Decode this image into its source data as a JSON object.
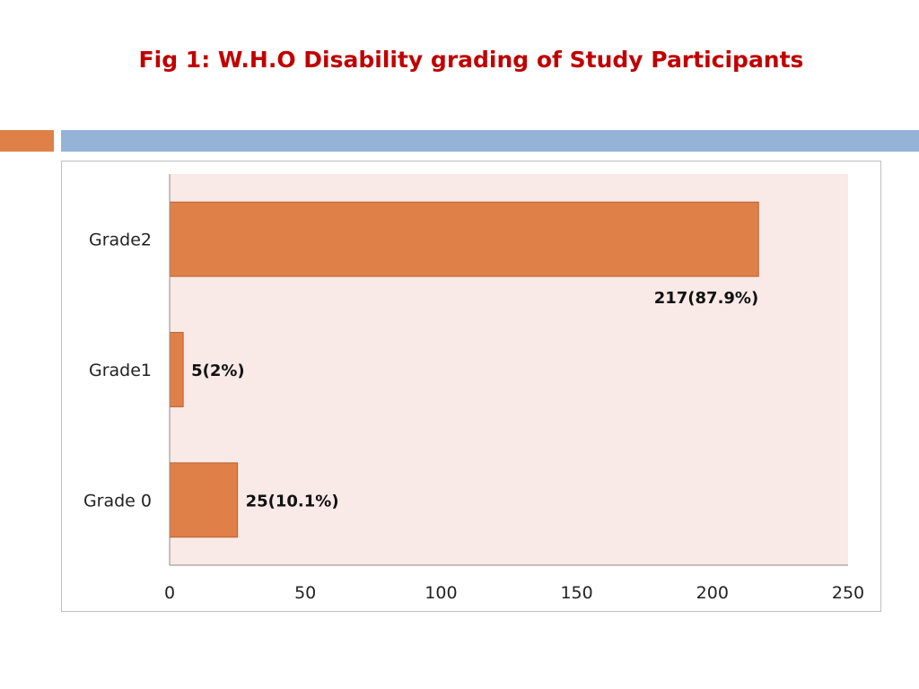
{
  "slide": {
    "title": "Fig 1: W.H.O Disability grading of Study Participants"
  },
  "colors": {
    "title": "#c00000",
    "bar": "#df8049",
    "bar_border": "#b8612e",
    "plot_background": "#f9e9e7",
    "accent_orange": "#df8049",
    "accent_blue": "#95b3d7"
  },
  "chart_data": {
    "type": "bar",
    "orientation": "horizontal",
    "title": "",
    "xlabel": "",
    "ylabel": "",
    "categories": [
      "Grade2",
      "Grade1",
      "Grade 0"
    ],
    "values": [
      217,
      5,
      25
    ],
    "data_labels": [
      "217(87.9%)",
      "5(2%)",
      "25(10.1%)"
    ],
    "xlim": [
      0,
      250
    ],
    "xticks": [
      0,
      50,
      100,
      150,
      200,
      250
    ],
    "grid": false,
    "legend": "none"
  }
}
